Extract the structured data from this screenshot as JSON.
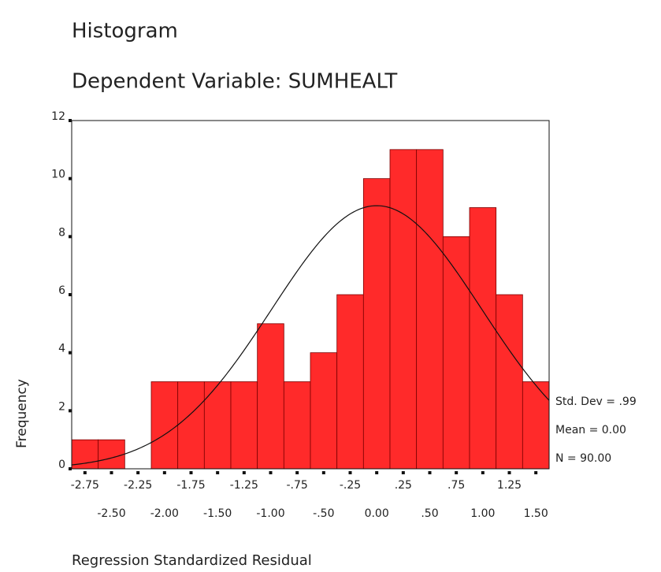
{
  "chart_data": {
    "type": "histogram",
    "title": "Histogram",
    "subtitle": "Dependent Variable: SUMHEALT",
    "x_label": "Regression Standardized Residual",
    "y_label": "Frequency",
    "bins": [
      -2.875,
      -2.625,
      -2.375,
      -2.125,
      -1.875,
      -1.625,
      -1.375,
      -1.125,
      -0.875,
      -0.625,
      -0.375,
      -0.125,
      0.125,
      0.375,
      0.625,
      0.875,
      1.125,
      1.375,
      1.625
    ],
    "values": [
      1,
      1,
      0,
      3,
      3,
      3,
      3,
      5,
      3,
      4,
      6,
      10,
      11,
      11,
      8,
      9,
      6,
      3
    ],
    "color": "#ff2a2a",
    "xlim": [
      -2.875,
      1.625
    ],
    "ylim": [
      0,
      12
    ],
    "xticks": [
      {
        "value": -2.75,
        "label": "-2.75"
      },
      {
        "value": -2.5,
        "label": "-2.50"
      },
      {
        "value": -2.25,
        "label": "-2.25"
      },
      {
        "value": -2,
        "label": "-2.00"
      },
      {
        "value": -1.75,
        "label": "-1.75"
      },
      {
        "value": -1.5,
        "label": "-1.50"
      },
      {
        "value": -1.25,
        "label": "-1.25"
      },
      {
        "value": -1,
        "label": "-1.00"
      },
      {
        "value": -0.75,
        "label": "-.75"
      },
      {
        "value": -0.5,
        "label": "-.50"
      },
      {
        "value": -0.25,
        "label": "-.25"
      },
      {
        "value": 0,
        "label": "0.00"
      },
      {
        "value": 0.25,
        "label": ".25"
      },
      {
        "value": 0.5,
        "label": ".50"
      },
      {
        "value": 0.75,
        "label": ".75"
      },
      {
        "value": 1,
        "label": "1.00"
      },
      {
        "value": 1.25,
        "label": "1.25"
      },
      {
        "value": 1.5,
        "label": "1.50"
      }
    ],
    "yticks": [
      0,
      2,
      4,
      6,
      8,
      10,
      12
    ],
    "stats": [
      {
        "value": 0.99,
        "label": "Std. Dev = .99"
      },
      {
        "value": 0,
        "label": "Mean = 0.00"
      },
      {
        "value": 90,
        "label": "N = 90.00"
      }
    ]
  }
}
